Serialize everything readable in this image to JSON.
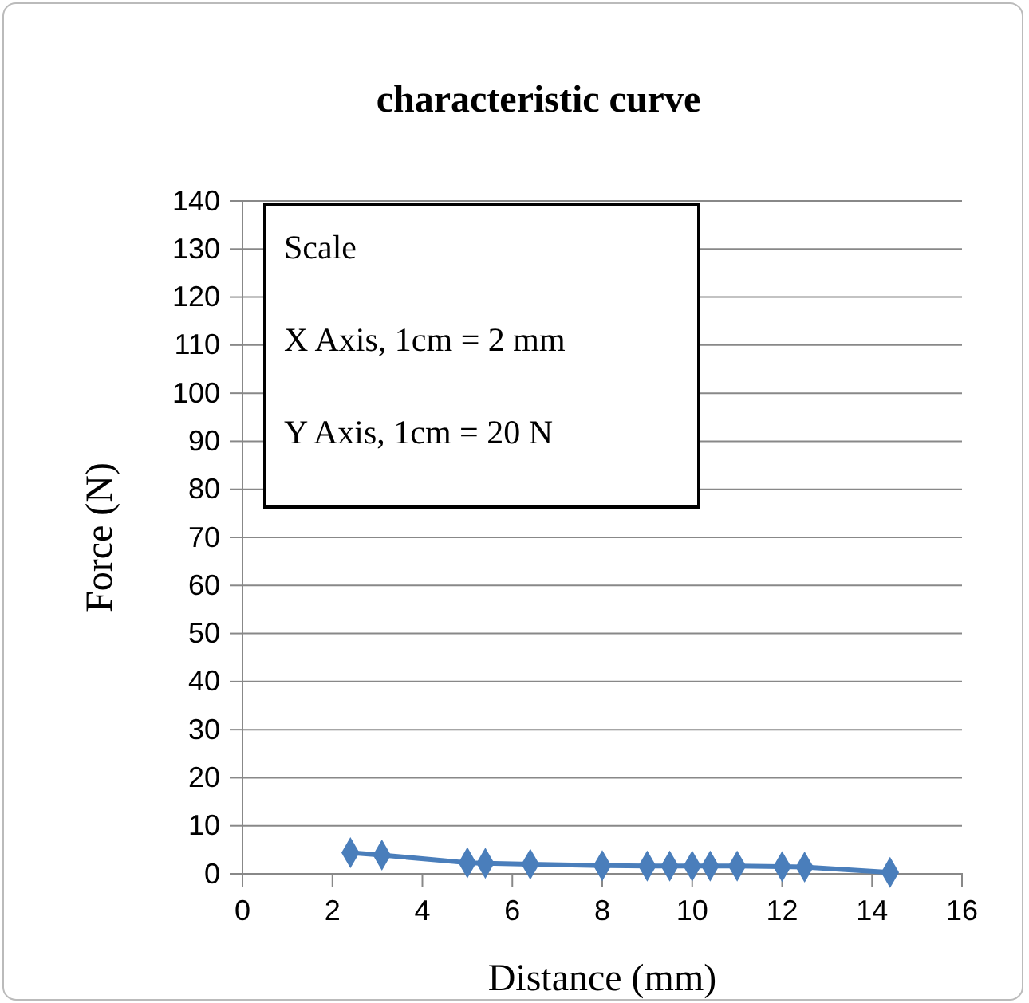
{
  "chart_data": {
    "type": "line",
    "title": "characteristic curve",
    "xlabel": "Distance (mm)",
    "ylabel": "Force (N)",
    "x": [
      2.4,
      3.1,
      5.0,
      5.4,
      6.4,
      8.0,
      9.0,
      9.5,
      10.0,
      10.4,
      11.0,
      12.0,
      12.5,
      14.4
    ],
    "series": [
      {
        "color": "#4a7ebb",
        "values": [
          4.4,
          3.9,
          2.3,
          2.2,
          2.0,
          1.7,
          1.6,
          1.6,
          1.6,
          1.6,
          1.6,
          1.5,
          1.4,
          0.3
        ]
      }
    ],
    "xlim": [
      0,
      16
    ],
    "xticks": [
      0,
      2,
      4,
      6,
      8,
      10,
      12,
      14,
      16
    ],
    "ylim": [
      0,
      140
    ],
    "yticks": [
      0,
      10,
      20,
      30,
      40,
      50,
      60,
      70,
      80,
      90,
      100,
      110,
      120,
      130,
      140
    ],
    "grid": "y",
    "marker": "diamond",
    "line_style": "solid",
    "annotations": [
      "Scale",
      "X Axis, 1cm = 2 mm",
      "Y Axis, 1cm = 20 N"
    ]
  }
}
